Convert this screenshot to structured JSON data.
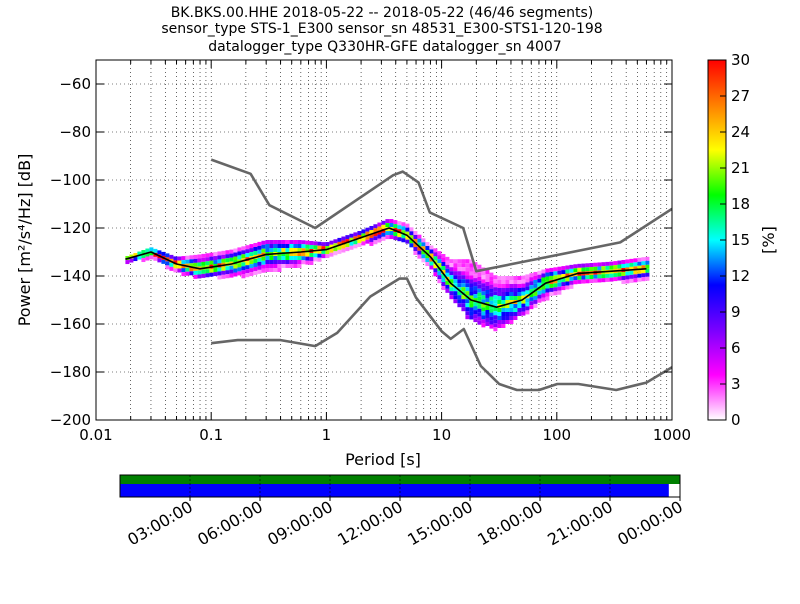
{
  "chart_data": {
    "type": "heatmap",
    "title_lines": [
      "BK.BKS.00.HHE   2018-05-22 -- 2018-05-22  (46/46 segments)",
      "sensor_type STS-1_E300 sensor_sn 48531_E300-STS1-120-198",
      "datalogger_type Q330HR-GFE datalogger_sn 4007"
    ],
    "xlabel": "Period [s]",
    "ylabel": "Power [m²/s⁴/Hz] [dB]",
    "x_scale": "log",
    "xlim": [
      0.01,
      1000
    ],
    "ylim": [
      -200,
      -50
    ],
    "x_ticks": [
      "0.01",
      "0.1",
      "1",
      "10",
      "100",
      "1000"
    ],
    "y_ticks": [
      "−200",
      "−180",
      "−160",
      "−140",
      "−120",
      "−100",
      "−80",
      "−60"
    ],
    "x_tick_values": [
      0.01,
      0.1,
      1,
      10,
      100,
      1000
    ],
    "y_tick_values": [
      -200,
      -180,
      -160,
      -140,
      -120,
      -100,
      -80,
      -60
    ],
    "grid": true,
    "colorbar": {
      "label": "[%]",
      "range": [
        0,
        30
      ],
      "ticks": [
        "0",
        "3",
        "6",
        "9",
        "12",
        "15",
        "18",
        "21",
        "24",
        "27",
        "30"
      ],
      "tick_values": [
        0,
        3,
        6,
        9,
        12,
        15,
        18,
        21,
        24,
        27,
        30
      ],
      "colors": [
        "#ffffff",
        "#ff00ff",
        "#7a00ff",
        "#0000ff",
        "#00ffff",
        "#00ff00",
        "#ffff00",
        "#ff8000",
        "#ff0000"
      ]
    },
    "series": [
      {
        "role": "mean",
        "color": "#000000",
        "x": [
          0.018,
          0.03,
          0.05,
          0.08,
          0.15,
          0.3,
          0.6,
          1,
          2,
          3.5,
          5,
          8,
          12,
          18,
          30,
          50,
          80,
          150,
          300,
          600
        ],
        "y": [
          -133,
          -130,
          -135,
          -137,
          -135,
          -131,
          -130,
          -129,
          -124,
          -120,
          -123,
          -132,
          -143,
          -150,
          -153,
          -150,
          -143,
          -139,
          -138,
          -137
        ]
      },
      {
        "role": "noise-model-high",
        "color": "#666666",
        "x": [
          0.1,
          0.22,
          0.32,
          0.8,
          3.8,
          4.6,
          6.3,
          7.9,
          15.4,
          20,
          354.8,
          1000
        ],
        "y": [
          -91.5,
          -97.4,
          -110.5,
          -120,
          -98,
          -96.5,
          -101,
          -113.5,
          -120,
          -138,
          -126,
          -112
        ]
      },
      {
        "role": "noise-model-low",
        "color": "#666666",
        "x": [
          0.1,
          0.17,
          0.4,
          0.8,
          1.24,
          2.4,
          4.3,
          5,
          6,
          10,
          12,
          15.6,
          21.9,
          31.6,
          45,
          70,
          101,
          154,
          328,
          600,
          1000
        ],
        "y": [
          -168,
          -166.7,
          -166.7,
          -169.2,
          -163.7,
          -148.6,
          -141.1,
          -141.1,
          -149,
          -163,
          -166.2,
          -162.1,
          -177.5,
          -185,
          -187.5,
          -187.5,
          -185,
          -185,
          -187.5,
          -184.4,
          -178
        ]
      }
    ],
    "band": {
      "x": [
        0.018,
        0.03,
        0.05,
        0.08,
        0.15,
        0.3,
        0.6,
        1,
        2,
        3.5,
        5,
        8,
        12,
        18,
        30,
        50,
        80,
        150,
        300,
        600
      ],
      "y_low": [
        -134,
        -132,
        -138,
        -140,
        -140,
        -138,
        -135,
        -132,
        -127,
        -124,
        -126,
        -136,
        -149,
        -158,
        -162,
        -156,
        -149,
        -143,
        -142,
        -141
      ],
      "y_high": [
        -132,
        -128,
        -132,
        -131,
        -129,
        -125,
        -125,
        -126,
        -121,
        -116,
        -118,
        -127,
        -133,
        -133,
        -140,
        -140,
        -137,
        -135,
        -134,
        -132
      ]
    },
    "time_ticks": [
      "03:00:00",
      "06:00:00",
      "09:00:00",
      "12:00:00",
      "15:00:00",
      "18:00:00",
      "21:00:00",
      "00:00:00"
    ],
    "coverage": {
      "top_color": "#008000",
      "bottom_color": "#0000ff",
      "top_fraction": 1.0,
      "bottom_fraction": 0.98
    }
  }
}
